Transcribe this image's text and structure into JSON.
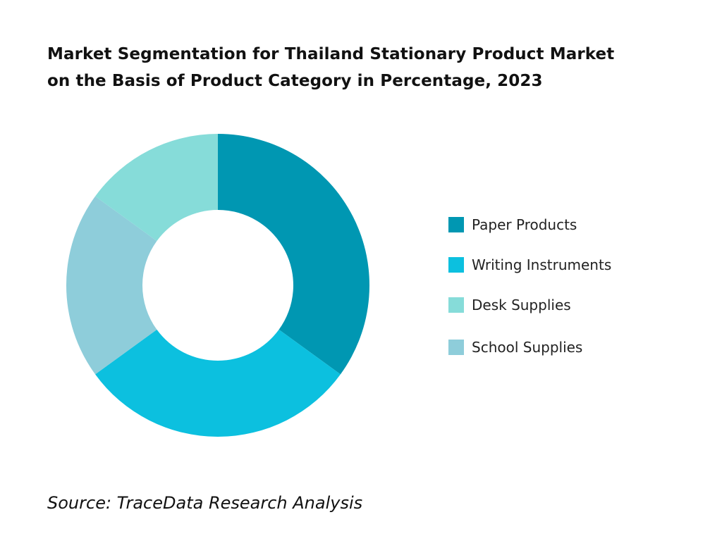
{
  "title_lines": [
    "Market Segmentation for Thailand Stationary Product Market",
    "on the Basis of Product Category in Percentage, 2023"
  ],
  "source": "Source: TraceData Research Analysis",
  "chart_data": {
    "type": "pie",
    "variant": "donut",
    "title": "Market Segmentation for Thailand Stationary Product Market on the Basis of Product Category in Percentage, 2023",
    "units": "%",
    "start_angle_deg": 0,
    "direction": "clockwise",
    "categories": [
      "Paper Products",
      "Writing Instruments",
      "School Supplies",
      "Desk Supplies"
    ],
    "values": [
      35,
      30,
      20,
      15
    ],
    "colors": [
      "#0097b2",
      "#0cc0df",
      "#8ecdda",
      "#86dcd9"
    ],
    "legend": {
      "position": "right",
      "entries": [
        {
          "label": "Paper Products",
          "color": "#0097b2"
        },
        {
          "label": "Writing Instruments",
          "color": "#0cc0df"
        },
        {
          "label": "Desk Supplies",
          "color": "#86dcd9"
        },
        {
          "label": "School Supplies",
          "color": "#8ecdda"
        }
      ]
    },
    "data_labels": false,
    "grid": false
  }
}
